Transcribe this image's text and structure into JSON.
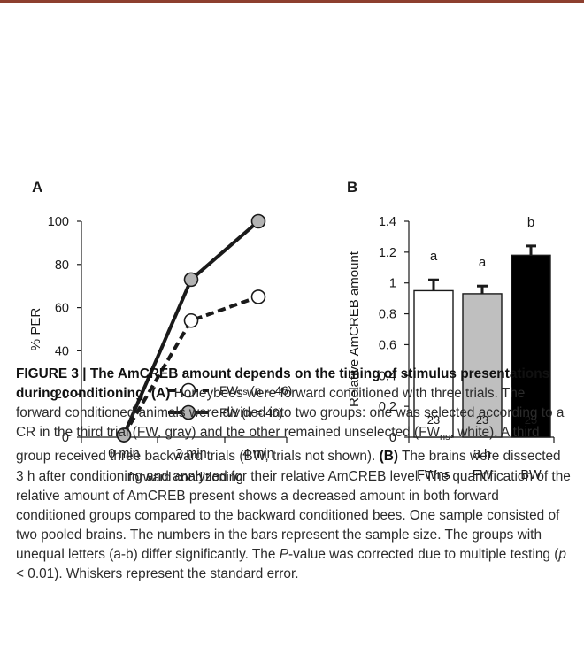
{
  "panel_a": {
    "letter": "A"
  },
  "panel_b": {
    "letter": "B"
  },
  "chart_data": [
    {
      "type": "line",
      "panel": "A",
      "xlabel": "forward conditioning",
      "ylabel": "% PER",
      "categories": [
        "0 min",
        "2 min",
        "4 min"
      ],
      "yticks": [
        "0",
        "20",
        "40",
        "60",
        "80",
        "100"
      ],
      "ylim": [
        0,
        100
      ],
      "series": [
        {
          "name": "FWns",
          "legend_sub": "ns",
          "legend_base": "FW",
          "legend_n": "(n = 46)",
          "values": [
            1,
            54,
            65
          ],
          "style": "dashed",
          "marker_fill": "#ffffff"
        },
        {
          "name": "FW",
          "legend_base": "FW",
          "legend_n": "(n = 46)",
          "values": [
            1,
            73,
            100
          ],
          "style": "solid",
          "marker_fill": "#b3b3b3"
        }
      ]
    },
    {
      "type": "bar",
      "panel": "B",
      "ylabel": "Relative AmCREB amount",
      "xlabel": "3 h",
      "categories": [
        "FWns",
        "FW",
        "BW"
      ],
      "values": [
        0.95,
        0.93,
        1.18
      ],
      "errors": [
        0.07,
        0.05,
        0.06
      ],
      "sample_sizes": [
        "23",
        "23",
        "25"
      ],
      "letters": [
        "a",
        "a",
        "b"
      ],
      "colors": [
        "#ffffff",
        "#bfbfbf",
        "#000000"
      ],
      "yticks": [
        "0",
        "0.2",
        "0.4",
        "0.6",
        "0.8",
        "1",
        "1.2",
        "1.4"
      ],
      "ylim": [
        0,
        1.4
      ]
    }
  ],
  "caption": {
    "title": "FIGURE 3 | The AmCREB amount depends on the timing of stimulus presentations during conditioning",
    "p1_a_label": "(A)",
    "p1_a_text": " Honeybees were forward conditioned with three trials. The forward conditioned animals were divided into two groups: one was selected according to a CR in the third trial (FW, gray) and the other remained unselected (FW",
    "p1_sub": "ns",
    "p1_a_text2": ", white). A third group received three backward trials (BW, trials not shown). ",
    "p1_b_label": "(B)",
    "p1_b_text": " The brains were dissected 3 h after conditioning and analyzed for their relative AmCREB level. The quantification of the relative amount of AmCREB present shows a decreased amount in both forward conditioned groups compared to the backward conditioned bees. One sample consisted of two pooled brains. The numbers in the bars represent the sample size. The groups with unequal letters (a-b) differ significantly. The ",
    "p_italic": "P",
    "p1_b_text2": "-value was corrected due to multiple testing (",
    "p_italic2": "p",
    "p1_b_text3": " < 0.01). Whiskers represent the standard error."
  }
}
